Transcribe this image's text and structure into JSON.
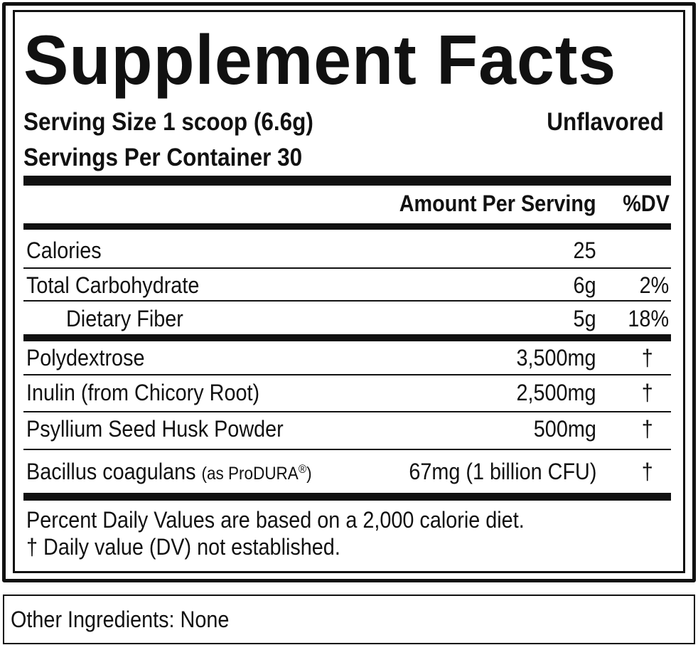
{
  "title": "Supplement Facts",
  "serving_size": "Serving Size 1 scoop (6.6g)",
  "flavor": "Unflavored",
  "servings_per_container": "Servings Per Container 30",
  "header": {
    "amount": "Amount Per Serving",
    "dv": "%DV"
  },
  "rows": [
    {
      "name": "Calories",
      "amount": "25",
      "dv": ""
    },
    {
      "name": "Total Carbohydrate",
      "amount": "6g",
      "dv": "2%"
    },
    {
      "name": "Dietary Fiber",
      "amount": "5g",
      "dv": "18%"
    },
    {
      "name": "Polydextrose",
      "amount": "3,500mg",
      "dv": "†"
    },
    {
      "name": "Inulin (from Chicory Root)",
      "amount": "2,500mg",
      "dv": "†"
    },
    {
      "name": "Psyllium Seed Husk Powder",
      "amount": "500mg",
      "dv": "†"
    },
    {
      "name": "Bacillus coagulans",
      "name_note": "(as ProDURA",
      "name_reg": "®",
      "name_close": ")",
      "amount": "67mg (1 billion CFU)",
      "dv": "†"
    }
  ],
  "footnotes": [
    "Percent Daily Values are based on a 2,000 calorie diet.",
    "† Daily value (DV) not established."
  ],
  "other_ingredients": "Other Ingredients: None"
}
